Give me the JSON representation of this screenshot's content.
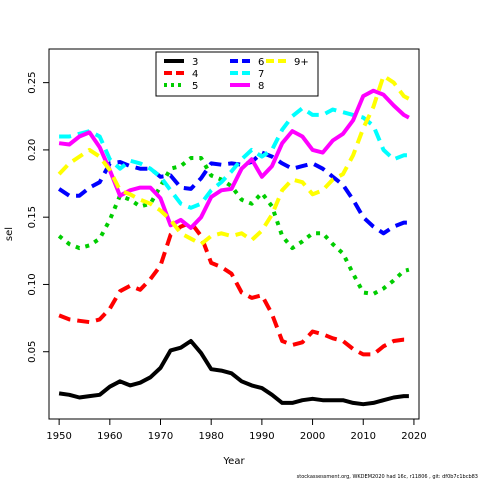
{
  "chart_data": {
    "type": "line",
    "title": "",
    "xlabel": "Year",
    "ylabel": "sel",
    "xlim": [
      1948,
      2021
    ],
    "ylim": [
      0.0,
      0.275
    ],
    "xticks": [
      1950,
      1960,
      1970,
      1980,
      1990,
      2000,
      2010,
      2020
    ],
    "yticks": [
      0.05,
      0.1,
      0.15,
      0.2,
      0.25
    ],
    "ytick_labels": [
      "0.05",
      "0.10",
      "0.15",
      "0.20",
      "0.25"
    ],
    "grid": false,
    "legend_position": "top-center",
    "x": [
      1950,
      1952,
      1954,
      1956,
      1958,
      1960,
      1962,
      1964,
      1966,
      1968,
      1970,
      1972,
      1974,
      1976,
      1978,
      1980,
      1982,
      1984,
      1986,
      1988,
      1990,
      1992,
      1994,
      1996,
      1998,
      2000,
      2002,
      2004,
      2006,
      2008,
      2010,
      2012,
      2014,
      2016,
      2018,
      2019
    ],
    "series": [
      {
        "name": "3",
        "color": "#000000",
        "dash": "solid",
        "values": [
          0.019,
          0.018,
          0.016,
          0.017,
          0.018,
          0.024,
          0.028,
          0.025,
          0.027,
          0.031,
          0.038,
          0.051,
          0.053,
          0.058,
          0.049,
          0.037,
          0.036,
          0.034,
          0.028,
          0.025,
          0.023,
          0.018,
          0.012,
          0.012,
          0.014,
          0.015,
          0.014,
          0.014,
          0.014,
          0.012,
          0.011,
          0.012,
          0.014,
          0.016,
          0.017,
          0.017
        ]
      },
      {
        "name": "4",
        "color": "#ff0000",
        "dash": "dashed",
        "values": [
          0.077,
          0.074,
          0.073,
          0.072,
          0.074,
          0.082,
          0.095,
          0.099,
          0.096,
          0.104,
          0.114,
          0.137,
          0.143,
          0.146,
          0.136,
          0.116,
          0.113,
          0.108,
          0.094,
          0.09,
          0.092,
          0.078,
          0.058,
          0.055,
          0.057,
          0.065,
          0.063,
          0.06,
          0.058,
          0.052,
          0.048,
          0.048,
          0.054,
          0.058,
          0.059,
          0.059
        ]
      },
      {
        "name": "5",
        "color": "#00cd00",
        "dash": "dotted",
        "values": [
          0.136,
          0.13,
          0.127,
          0.129,
          0.134,
          0.148,
          0.166,
          0.163,
          0.158,
          0.16,
          0.173,
          0.186,
          0.188,
          0.194,
          0.194,
          0.181,
          0.178,
          0.173,
          0.163,
          0.16,
          0.168,
          0.158,
          0.136,
          0.127,
          0.132,
          0.138,
          0.138,
          0.13,
          0.123,
          0.108,
          0.094,
          0.093,
          0.097,
          0.103,
          0.11,
          0.111
        ]
      },
      {
        "name": "6",
        "color": "#0000ff",
        "dash": "dashed",
        "values": [
          0.171,
          0.166,
          0.166,
          0.172,
          0.176,
          0.19,
          0.191,
          0.188,
          0.186,
          0.186,
          0.18,
          0.181,
          0.172,
          0.171,
          0.179,
          0.19,
          0.189,
          0.19,
          0.189,
          0.191,
          0.198,
          0.195,
          0.19,
          0.186,
          0.188,
          0.19,
          0.186,
          0.18,
          0.174,
          0.163,
          0.15,
          0.143,
          0.138,
          0.143,
          0.146,
          0.146
        ]
      },
      {
        "name": "7",
        "color": "#00ffff",
        "dash": "dashed",
        "values": [
          0.21,
          0.21,
          0.212,
          0.214,
          0.21,
          0.193,
          0.186,
          0.192,
          0.19,
          0.186,
          0.18,
          0.17,
          0.16,
          0.157,
          0.16,
          0.17,
          0.176,
          0.184,
          0.193,
          0.2,
          0.195,
          0.2,
          0.215,
          0.225,
          0.231,
          0.226,
          0.226,
          0.23,
          0.228,
          0.226,
          0.224,
          0.218,
          0.2,
          0.193,
          0.196,
          0.196
        ]
      },
      {
        "name": "8",
        "color": "#ff00ff",
        "dash": "solid",
        "values": [
          0.205,
          0.204,
          0.21,
          0.213,
          0.202,
          0.185,
          0.166,
          0.17,
          0.172,
          0.172,
          0.164,
          0.144,
          0.148,
          0.142,
          0.15,
          0.165,
          0.17,
          0.171,
          0.186,
          0.193,
          0.18,
          0.188,
          0.205,
          0.214,
          0.21,
          0.2,
          0.198,
          0.207,
          0.212,
          0.222,
          0.24,
          0.244,
          0.241,
          0.233,
          0.226,
          0.224
        ]
      },
      {
        "name": "9+",
        "color": "#ffff00",
        "dash": "dashed",
        "values": [
          0.182,
          0.19,
          0.195,
          0.2,
          0.195,
          0.185,
          0.17,
          0.167,
          0.163,
          0.16,
          0.155,
          0.148,
          0.138,
          0.134,
          0.13,
          0.136,
          0.138,
          0.136,
          0.138,
          0.133,
          0.14,
          0.152,
          0.17,
          0.178,
          0.176,
          0.167,
          0.17,
          0.178,
          0.182,
          0.196,
          0.216,
          0.232,
          0.255,
          0.25,
          0.24,
          0.238
        ]
      }
    ]
  },
  "footnote": "stockassessment.org, WKDEM2020 had 16c, r11806 , git: df0b7c1bcb83"
}
